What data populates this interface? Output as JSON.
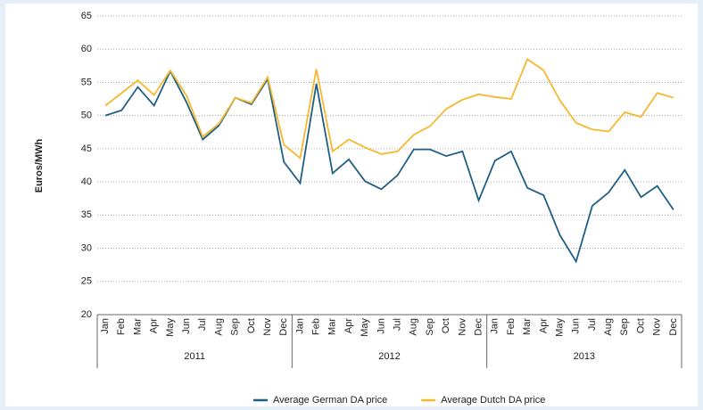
{
  "chart_data": {
    "type": "line",
    "y_label": "Euros/MWh",
    "categories": [
      "Jan",
      "Feb",
      "Mar",
      "Apr",
      "May",
      "Jun",
      "Jul",
      "Aug",
      "Sep",
      "Oct",
      "Nov",
      "Dec",
      "Jan",
      "Feb",
      "Mar",
      "Apr",
      "May",
      "Jun",
      "Jul",
      "Aug",
      "Sep",
      "Oct",
      "Nov",
      "Dec",
      "Jan",
      "Feb",
      "Mar",
      "Apr",
      "May",
      "Jun",
      "Jul",
      "Aug",
      "Sep",
      "Oct",
      "Nov",
      "Dec"
    ],
    "year_groups": [
      "2011",
      "2012",
      "2013"
    ],
    "series": [
      {
        "name": "Average German DA price",
        "color": "#1f5f85",
        "values": [
          50,
          50.8,
          54.3,
          51.5,
          56.7,
          52,
          46.4,
          48.5,
          52.7,
          51.7,
          55.5,
          43,
          39.8,
          54.8,
          41.3,
          43.4,
          40.1,
          38.9,
          41,
          44.9,
          44.9,
          43.9,
          44.6,
          37.2,
          43.2,
          44.6,
          39.1,
          38,
          32,
          28,
          36.4,
          38.4,
          41.8,
          37.7,
          39.4,
          35.8
        ]
      },
      {
        "name": "Average Dutch DA price",
        "color": "#f5b82e",
        "values": [
          51.5,
          53.4,
          55.3,
          53.1,
          56.8,
          53,
          46.8,
          48.8,
          52.7,
          51.9,
          55.8,
          45.6,
          43.6,
          57,
          44.6,
          46.4,
          45.2,
          44.2,
          44.6,
          47.1,
          48.4,
          51,
          52.4,
          53.2,
          52.8,
          52.5,
          58.5,
          56.8,
          52.3,
          48.9,
          47.9,
          47.6,
          50.5,
          49.8,
          53.4,
          52.7
        ]
      }
    ],
    "ylim": [
      20,
      65
    ],
    "yticks": [
      20,
      25,
      30,
      35,
      40,
      45,
      50,
      55,
      60,
      65
    ],
    "grid": true
  }
}
